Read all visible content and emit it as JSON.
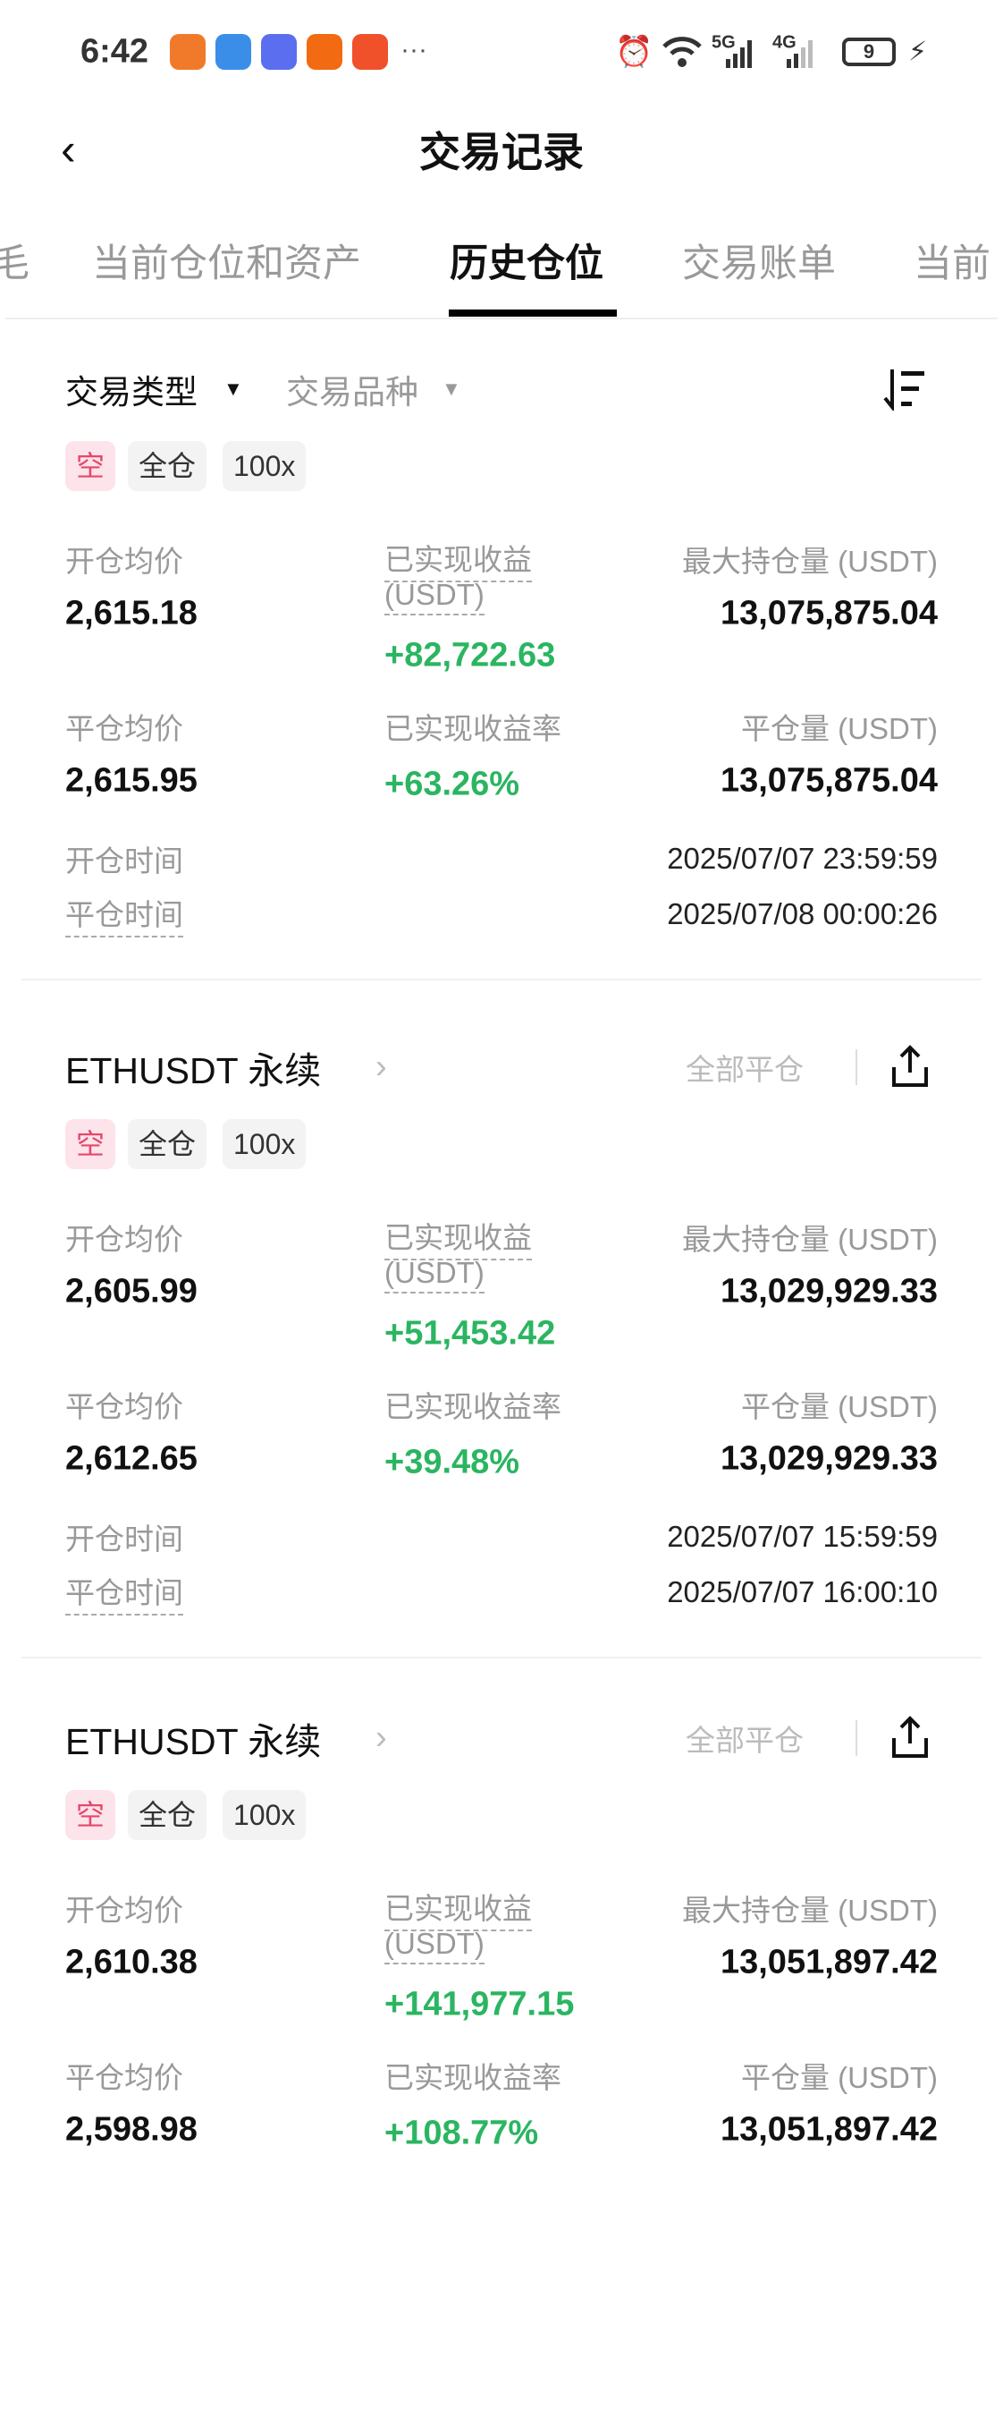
{
  "status_bar": {
    "time": "6:42",
    "network1": "5G",
    "network2": "4G",
    "battery": "9",
    "more": "···",
    "app_icons": [
      {
        "name": "health-app-icon",
        "color": "#f07a2a"
      },
      {
        "name": "browser-app-icon",
        "color": "#3a8ee8"
      },
      {
        "name": "music-app-icon",
        "color": "#5b6ef0"
      },
      {
        "name": "app-orange-icon",
        "color": "#f26a12"
      },
      {
        "name": "app-red-icon",
        "color": "#f0502a"
      }
    ]
  },
  "header": {
    "title": "交易记录",
    "back": "‹"
  },
  "tabs": [
    {
      "label": "毛",
      "active": false
    },
    {
      "label": "当前仓位和资产",
      "active": false
    },
    {
      "label": "历史仓位",
      "active": true
    },
    {
      "label": "交易账单",
      "active": false
    },
    {
      "label": "当前",
      "active": false
    }
  ],
  "filters": {
    "trade_type": "交易类型",
    "trade_symbol": "交易品种"
  },
  "colors": {
    "profit": "#2bb561",
    "short_tag": "#e5486a"
  },
  "labels": {
    "open_avg": "开仓均价",
    "realized_pnl": "已实现收益",
    "usdt_unit": "(USDT)",
    "max_position": "最大持仓量 (USDT)",
    "close_avg": "平仓均价",
    "pnl_rate": "已实现收益率",
    "close_volume": "平仓量 (USDT)",
    "open_time": "开仓时间",
    "close_time": "平仓时间",
    "close_all": "全部平仓"
  },
  "positions": [
    {
      "symbol": "",
      "tags": [
        "空",
        "全仓",
        "100x"
      ],
      "open_avg": "2,615.18",
      "realized_pnl": "+82,722.63",
      "max_position": "13,075,875.04",
      "close_avg": "2,615.95",
      "pnl_rate": "+63.26%",
      "close_volume": "13,075,875.04",
      "open_time": "2025/07/07 23:59:59",
      "close_time": "2025/07/08 00:00:26"
    },
    {
      "symbol": "ETHUSDT 永续",
      "tags": [
        "空",
        "全仓",
        "100x"
      ],
      "open_avg": "2,605.99",
      "realized_pnl": "+51,453.42",
      "max_position": "13,029,929.33",
      "close_avg": "2,612.65",
      "pnl_rate": "+39.48%",
      "close_volume": "13,029,929.33",
      "open_time": "2025/07/07 15:59:59",
      "close_time": "2025/07/07 16:00:10"
    },
    {
      "symbol": "ETHUSDT 永续",
      "tags": [
        "空",
        "全仓",
        "100x"
      ],
      "open_avg": "2,610.38",
      "realized_pnl": "+141,977.15",
      "max_position": "13,051,897.42",
      "close_avg": "2,598.98",
      "pnl_rate": "+108.77%",
      "close_volume": "13,051,897.42",
      "open_time": "",
      "close_time": ""
    }
  ]
}
